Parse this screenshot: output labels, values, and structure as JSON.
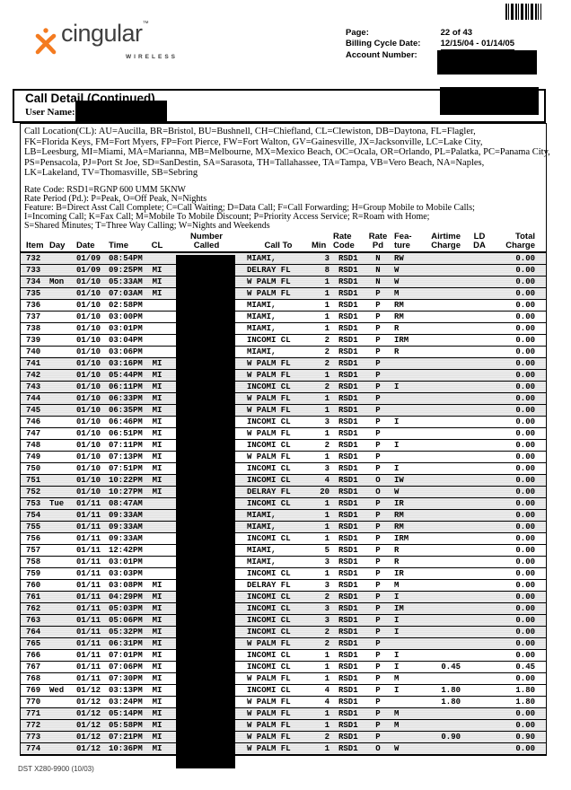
{
  "logo": {
    "brand": "cingular",
    "tm": "™",
    "sub": "WIRELESS"
  },
  "meta": {
    "page_label": "Page:",
    "page_value": "22 of 43",
    "cycle_label": "Billing Cycle Date:",
    "cycle_value": "12/15/04 - 01/14/05",
    "account_label": "Account Number:"
  },
  "section": {
    "title": "Call Detail (Continued)",
    "user_label": "User Name:"
  },
  "legend_lines": [
    "Call Location(CL):  AU=Aucilla, BR=Bristol, BU=Bushnell, CH=Chiefland, CL=Clewiston, DB=Daytona, FL=Flagler,",
    "FK=Florida Keys, FM=Fort Myers, FP=Fort Pierce, FW=Fort Walton, GV=Gainesville, JX=Jacksonville, LC=Lake City,",
    "LB=Leesburg, MI=Miami, MA=Marianna, MB=Melbourne, MX=Mexico Beach, OC=Ocala, OR=Orlando, PL=Palatka, PC=Panama City,",
    "PS=Pensacola, PJ=Port St Joe, SD=SanDestin, SA=Sarasota, TH=Tallahassee, TA=Tampa, VB=Vero Beach, NA=Naples,",
    "LK=Lakeland, TV=Thomasville, SB=Sebring"
  ],
  "rate_lines": [
    "Rate Code: RSD1=RGNP 600 UMM 5KNW",
    "Rate Period (Pd.): P=Peak, O=Off Peak, N=Nights",
    "Feature: B=Direct Asst Call Complete; C=Call Waiting; D=Data Call; F=Call Forwarding; H=Group Mobile to Mobile Calls;",
    "I=Incoming Call; K=Fax Call; M=Mobile To Mobile Discount; P=Priority Access Service; R=Roam with Home;",
    "S=Shared Minutes;  T=Three Way Calling; W=Nights and Weekends"
  ],
  "table": {
    "headers": [
      {
        "l1": "",
        "l2": "Item"
      },
      {
        "l1": "",
        "l2": "Day"
      },
      {
        "l1": "",
        "l2": "Date"
      },
      {
        "l1": "",
        "l2": "Time"
      },
      {
        "l1": "",
        "l2": "CL"
      },
      {
        "l1": "Number",
        "l2": "Called"
      },
      {
        "l1": "",
        "l2": "Call To"
      },
      {
        "l1": "",
        "l2": "Min"
      },
      {
        "l1": "Rate",
        "l2": "Code"
      },
      {
        "l1": "Rate",
        "l2": "Pd"
      },
      {
        "l1": "Fea-",
        "l2": "ture"
      },
      {
        "l1": "Airtime",
        "l2": "Charge"
      },
      {
        "l1": "LD",
        "l2": "DA"
      },
      {
        "l1": "Total",
        "l2": "Charge"
      }
    ],
    "rows": [
      [
        "732",
        "",
        "01/09",
        "08:54PM",
        "",
        "MIAMI,",
        "3",
        "RSD1",
        "N",
        "RW",
        "",
        "",
        "0.00",
        1
      ],
      [
        "733",
        "",
        "01/09",
        "09:25PM",
        "MI",
        "DELRAY FL",
        "8",
        "RSD1",
        "N",
        "W",
        "",
        "",
        "0.00",
        1
      ],
      [
        "734",
        "Mon",
        "01/10",
        "05:33AM",
        "MI",
        "W PALM FL",
        "1",
        "RSD1",
        "N",
        "W",
        "",
        "",
        "0.00",
        1
      ],
      [
        "735",
        "",
        "01/10",
        "07:03AM",
        "MI",
        "W PALM FL",
        "1",
        "RSD1",
        "P",
        "M",
        "",
        "",
        "0.00",
        1
      ],
      [
        "736",
        "",
        "01/10",
        "02:58PM",
        "",
        "MIAMI,",
        "1",
        "RSD1",
        "P",
        "RM",
        "",
        "",
        "0.00",
        0
      ],
      [
        "737",
        "",
        "01/10",
        "03:00PM",
        "",
        "MIAMI,",
        "1",
        "RSD1",
        "P",
        "RM",
        "",
        "",
        "0.00",
        0
      ],
      [
        "738",
        "",
        "01/10",
        "03:01PM",
        "",
        "MIAMI,",
        "1",
        "RSD1",
        "P",
        "R",
        "",
        "",
        "0.00",
        0
      ],
      [
        "739",
        "",
        "01/10",
        "03:04PM",
        "",
        "INCOMI CL",
        "2",
        "RSD1",
        "P",
        "IRM",
        "",
        "",
        "0.00",
        0
      ],
      [
        "740",
        "",
        "01/10",
        "03:06PM",
        "",
        "MIAMI,",
        "2",
        "RSD1",
        "P",
        "R",
        "",
        "",
        "0.00",
        0
      ],
      [
        "741",
        "",
        "01/10",
        "03:16PM",
        "MI",
        "W PALM FL",
        "2",
        "RSD1",
        "P",
        "",
        "",
        "",
        "0.00",
        1
      ],
      [
        "742",
        "",
        "01/10",
        "05:44PM",
        "MI",
        "W PALM FL",
        "1",
        "RSD1",
        "P",
        "",
        "",
        "",
        "0.00",
        1
      ],
      [
        "743",
        "",
        "01/10",
        "06:11PM",
        "MI",
        "INCOMI CL",
        "2",
        "RSD1",
        "P",
        "I",
        "",
        "",
        "0.00",
        1
      ],
      [
        "744",
        "",
        "01/10",
        "06:33PM",
        "MI",
        "W PALM FL",
        "1",
        "RSD1",
        "P",
        "",
        "",
        "",
        "0.00",
        1
      ],
      [
        "745",
        "",
        "01/10",
        "06:35PM",
        "MI",
        "W PALM FL",
        "1",
        "RSD1",
        "P",
        "",
        "",
        "",
        "0.00",
        1
      ],
      [
        "746",
        "",
        "01/10",
        "06:46PM",
        "MI",
        "INCOMI CL",
        "3",
        "RSD1",
        "P",
        "I",
        "",
        "",
        "0.00",
        0
      ],
      [
        "747",
        "",
        "01/10",
        "06:51PM",
        "MI",
        "W PALM FL",
        "1",
        "RSD1",
        "P",
        "",
        "",
        "",
        "0.00",
        0
      ],
      [
        "748",
        "",
        "01/10",
        "07:11PM",
        "MI",
        "INCOMI CL",
        "2",
        "RSD1",
        "P",
        "I",
        "",
        "",
        "0.00",
        0
      ],
      [
        "749",
        "",
        "01/10",
        "07:13PM",
        "MI",
        "W PALM FL",
        "1",
        "RSD1",
        "P",
        "",
        "",
        "",
        "0.00",
        0
      ],
      [
        "750",
        "",
        "01/10",
        "07:51PM",
        "MI",
        "INCOMI CL",
        "3",
        "RSD1",
        "P",
        "I",
        "",
        "",
        "0.00",
        0
      ],
      [
        "751",
        "",
        "01/10",
        "10:22PM",
        "MI",
        "INCOMI CL",
        "4",
        "RSD1",
        "O",
        "IW",
        "",
        "",
        "0.00",
        1
      ],
      [
        "752",
        "",
        "01/10",
        "10:27PM",
        "MI",
        "DELRAY FL",
        "20",
        "RSD1",
        "O",
        "W",
        "",
        "",
        "0.00",
        1
      ],
      [
        "753",
        "Tue",
        "01/11",
        "08:47AM",
        "",
        "INCOMI CL",
        "1",
        "RSD1",
        "P",
        "IR",
        "",
        "",
        "0.00",
        1
      ],
      [
        "754",
        "",
        "01/11",
        "09:33AM",
        "",
        "MIAMI,",
        "1",
        "RSD1",
        "P",
        "RM",
        "",
        "",
        "0.00",
        1
      ],
      [
        "755",
        "",
        "01/11",
        "09:33AM",
        "",
        "MIAMI,",
        "1",
        "RSD1",
        "P",
        "RM",
        "",
        "",
        "0.00",
        1
      ],
      [
        "756",
        "",
        "01/11",
        "09:33AM",
        "",
        "INCOMI CL",
        "1",
        "RSD1",
        "P",
        "IRM",
        "",
        "",
        "0.00",
        0
      ],
      [
        "757",
        "",
        "01/11",
        "12:42PM",
        "",
        "MIAMI,",
        "5",
        "RSD1",
        "P",
        "R",
        "",
        "",
        "0.00",
        0
      ],
      [
        "758",
        "",
        "01/11",
        "03:01PM",
        "",
        "MIAMI,",
        "3",
        "RSD1",
        "P",
        "R",
        "",
        "",
        "0.00",
        0
      ],
      [
        "759",
        "",
        "01/11",
        "03:03PM",
        "",
        "INCOMI CL",
        "1",
        "RSD1",
        "P",
        "IR",
        "",
        "",
        "0.00",
        0
      ],
      [
        "760",
        "",
        "01/11",
        "03:08PM",
        "MI",
        "DELRAY FL",
        "3",
        "RSD1",
        "P",
        "M",
        "",
        "",
        "0.00",
        0
      ],
      [
        "761",
        "",
        "01/11",
        "04:29PM",
        "MI",
        "INCOMI CL",
        "2",
        "RSD1",
        "P",
        "I",
        "",
        "",
        "0.00",
        1
      ],
      [
        "762",
        "",
        "01/11",
        "05:03PM",
        "MI",
        "INCOMI CL",
        "3",
        "RSD1",
        "P",
        "IM",
        "",
        "",
        "0.00",
        1
      ],
      [
        "763",
        "",
        "01/11",
        "05:06PM",
        "MI",
        "INCOMI CL",
        "3",
        "RSD1",
        "P",
        "I",
        "",
        "",
        "0.00",
        1
      ],
      [
        "764",
        "",
        "01/11",
        "05:32PM",
        "MI",
        "INCOMI CL",
        "2",
        "RSD1",
        "P",
        "I",
        "",
        "",
        "0.00",
        1
      ],
      [
        "765",
        "",
        "01/11",
        "06:31PM",
        "MI",
        "W PALM FL",
        "2",
        "RSD1",
        "P",
        "",
        "",
        "",
        "0.00",
        1
      ],
      [
        "766",
        "",
        "01/11",
        "07:01PM",
        "MI",
        "INCOMI CL",
        "1",
        "RSD1",
        "P",
        "I",
        "",
        "",
        "0.00",
        0
      ],
      [
        "767",
        "",
        "01/11",
        "07:06PM",
        "MI",
        "INCOMI CL",
        "1",
        "RSD1",
        "P",
        "I",
        "0.45",
        "",
        "0.45",
        0
      ],
      [
        "768",
        "",
        "01/11",
        "07:30PM",
        "MI",
        "W PALM FL",
        "1",
        "RSD1",
        "P",
        "M",
        "",
        "",
        "0.00",
        0
      ],
      [
        "769",
        "Wed",
        "01/12",
        "03:13PM",
        "MI",
        "INCOMI CL",
        "4",
        "RSD1",
        "P",
        "I",
        "1.80",
        "",
        "1.80",
        0
      ],
      [
        "770",
        "",
        "01/12",
        "03:24PM",
        "MI",
        "W PALM FL",
        "4",
        "RSD1",
        "P",
        "",
        "1.80",
        "",
        "1.80",
        0
      ],
      [
        "771",
        "",
        "01/12",
        "05:14PM",
        "MI",
        "W PALM FL",
        "1",
        "RSD1",
        "P",
        "M",
        "",
        "",
        "0.00",
        1
      ],
      [
        "772",
        "",
        "01/12",
        "05:58PM",
        "MI",
        "W PALM FL",
        "1",
        "RSD1",
        "P",
        "M",
        "",
        "",
        "0.00",
        1
      ],
      [
        "773",
        "",
        "01/12",
        "07:21PM",
        "MI",
        "W PALM FL",
        "2",
        "RSD1",
        "P",
        "",
        "0.90",
        "",
        "0.90",
        1
      ],
      [
        "774",
        "",
        "01/12",
        "10:36PM",
        "MI",
        "W PALM FL",
        "1",
        "RSD1",
        "O",
        "W",
        "",
        "",
        "0.00",
        1
      ]
    ]
  },
  "footer": "DST X280-9900 (10/03)",
  "colors": {
    "accent_orange": "#F47B20",
    "ink": "#000000",
    "shade_gray": "#e7e7e7",
    "logo_gray": "#3f3f3f"
  }
}
